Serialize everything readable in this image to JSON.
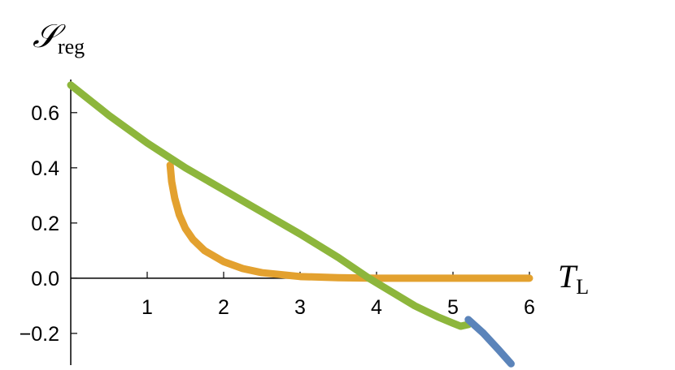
{
  "chart_data": {
    "type": "line",
    "xlabel": {
      "text": "T",
      "subscript": "L"
    },
    "ylabel": {
      "text": "𝒮",
      "subscript": "reg"
    },
    "xlim": [
      0,
      6
    ],
    "ylim": [
      -0.315,
      0.72
    ],
    "xticks": [
      1,
      2,
      3,
      4,
      5,
      6
    ],
    "yticks": [
      {
        "value": -0.2,
        "label": "−0.2"
      },
      {
        "value": 0,
        "label": "0.0"
      },
      0.2,
      0.4,
      0.6
    ],
    "series": [
      {
        "color": "#e3a12f",
        "x": [
          1.3,
          1.32,
          1.36,
          1.42,
          1.5,
          1.6,
          1.75,
          2.0,
          2.25,
          2.5,
          3.0,
          3.5,
          4.0,
          5.0,
          6.0
        ],
        "values": [
          0.41,
          0.35,
          0.29,
          0.23,
          0.18,
          0.14,
          0.1,
          0.06,
          0.035,
          0.02,
          0.006,
          0.002,
          0.0,
          0.0,
          0.0
        ]
      },
      {
        "color": "#8db63c",
        "x": [
          0,
          0.5,
          1.0,
          1.5,
          2.0,
          2.5,
          3.0,
          3.5,
          3.9,
          4.2,
          4.5,
          4.8,
          5.0,
          5.1,
          5.2
        ],
        "values": [
          0.7,
          0.59,
          0.49,
          0.4,
          0.32,
          0.24,
          0.16,
          0.075,
          0.0,
          -0.05,
          -0.1,
          -0.14,
          -0.163,
          -0.174,
          -0.168
        ]
      },
      {
        "color": "#5b84ba",
        "x": [
          5.2,
          5.4,
          5.6,
          5.76
        ],
        "values": [
          -0.15,
          -0.2,
          -0.26,
          -0.31
        ]
      }
    ]
  }
}
